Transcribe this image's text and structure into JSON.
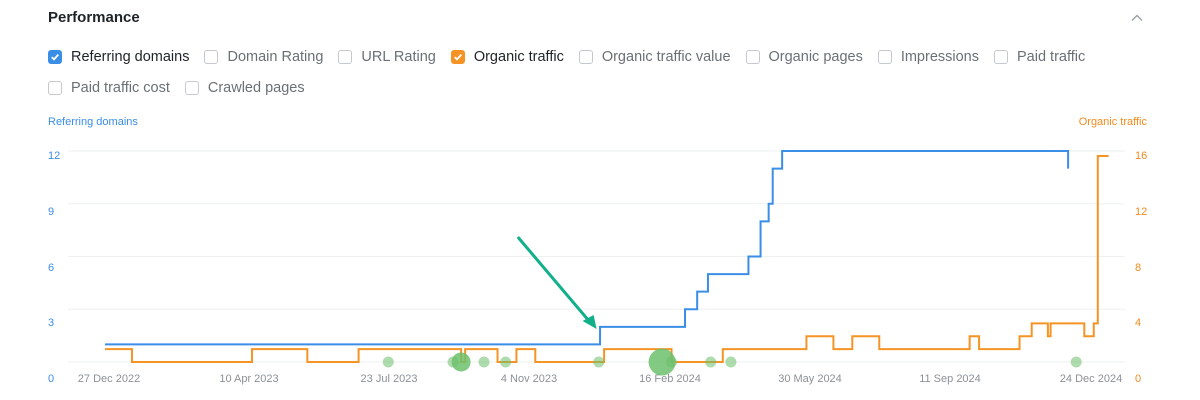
{
  "section": {
    "title": "Performance",
    "collapse_icon": "chevron-up-icon"
  },
  "metrics": [
    {
      "label": "Referring domains",
      "checked": true,
      "color": "#3a8ee6"
    },
    {
      "label": "Domain Rating",
      "checked": false
    },
    {
      "label": "URL Rating",
      "checked": false
    },
    {
      "label": "Organic traffic",
      "checked": true,
      "color": "#f59425"
    },
    {
      "label": "Organic traffic value",
      "checked": false
    },
    {
      "label": "Organic pages",
      "checked": false
    },
    {
      "label": "Impressions",
      "checked": false
    },
    {
      "label": "Paid traffic",
      "checked": false
    },
    {
      "label": "Paid traffic cost",
      "checked": false
    },
    {
      "label": "Crawled pages",
      "checked": false
    }
  ],
  "chart_data": {
    "type": "line",
    "step": true,
    "left_axis": {
      "title": "Referring domains",
      "ticks": [
        "0",
        "3",
        "6",
        "9",
        "12"
      ],
      "ylim": [
        0,
        12
      ],
      "color": "#3a8ee6"
    },
    "right_axis": {
      "title": "Organic traffic",
      "ticks": [
        "0",
        "4",
        "8",
        "12",
        "16"
      ],
      "ylim": [
        0,
        16
      ],
      "color": "#f28a1c"
    },
    "x_ticks": [
      "27 Dec 2022",
      "10 Apr 2023",
      "23 Jul 2023",
      "4 Nov 2023",
      "16 Feb 2024",
      "30 May 2024",
      "11 Sep 2024",
      "24 Dec 2024"
    ],
    "xlim": [
      "2022-12-27",
      "2024-12-24"
    ],
    "grid": true,
    "series": [
      {
        "name": "Referring domains",
        "axis": "left",
        "color": "#3a8ee6",
        "points": [
          [
            "2022-12-27",
            1
          ],
          [
            "2023-12-29",
            2
          ],
          [
            "2024-03-01",
            3
          ],
          [
            "2024-03-10",
            4
          ],
          [
            "2024-03-18",
            5
          ],
          [
            "2024-04-17",
            6
          ],
          [
            "2024-04-26",
            8
          ],
          [
            "2024-05-02",
            9
          ],
          [
            "2024-05-05",
            11
          ],
          [
            "2024-05-12",
            12
          ],
          [
            "2024-12-10",
            11
          ]
        ]
      },
      {
        "name": "Organic traffic",
        "axis": "right",
        "color": "#f59425",
        "points": [
          [
            "2022-12-27",
            1
          ],
          [
            "2023-01-16",
            0
          ],
          [
            "2023-04-15",
            1
          ],
          [
            "2023-05-26",
            0
          ],
          [
            "2023-07-03",
            1
          ],
          [
            "2023-09-17",
            0
          ],
          [
            "2023-09-20",
            1
          ],
          [
            "2023-10-14",
            0
          ],
          [
            "2023-10-28",
            1
          ],
          [
            "2023-11-11",
            0
          ],
          [
            "2024-01-01",
            1
          ],
          [
            "2024-02-20",
            0
          ],
          [
            "2024-03-29",
            1
          ],
          [
            "2024-05-30",
            2
          ],
          [
            "2024-06-19",
            1
          ],
          [
            "2024-07-03",
            2
          ],
          [
            "2024-07-23",
            1
          ],
          [
            "2024-09-28",
            2
          ],
          [
            "2024-10-05",
            1
          ],
          [
            "2024-11-04",
            2
          ],
          [
            "2024-11-13",
            3
          ],
          [
            "2024-11-25",
            2
          ],
          [
            "2024-11-27",
            3
          ],
          [
            "2024-12-22",
            2
          ],
          [
            "2024-12-29",
            3
          ],
          [
            "2025-01-01",
            16
          ],
          [
            "2025-01-09",
            16
          ]
        ]
      }
    ],
    "events": [
      {
        "date": "2023-07-25",
        "size": "small"
      },
      {
        "date": "2023-09-11",
        "size": "small"
      },
      {
        "date": "2023-09-17",
        "size": "medium"
      },
      {
        "date": "2023-10-04",
        "size": "small"
      },
      {
        "date": "2023-10-20",
        "size": "small"
      },
      {
        "date": "2023-12-28",
        "size": "small"
      },
      {
        "date": "2024-02-13",
        "size": "large"
      },
      {
        "date": "2024-02-20",
        "size": "small"
      },
      {
        "date": "2024-03-20",
        "size": "small"
      },
      {
        "date": "2024-04-04",
        "size": "small"
      },
      {
        "date": "2024-12-16",
        "size": "small"
      }
    ],
    "event_color": "#6cbf6c",
    "annotation_arrow": {
      "from_date": "2023-11-12",
      "to_date": "2023-12-22",
      "color": "#12b08a"
    }
  }
}
